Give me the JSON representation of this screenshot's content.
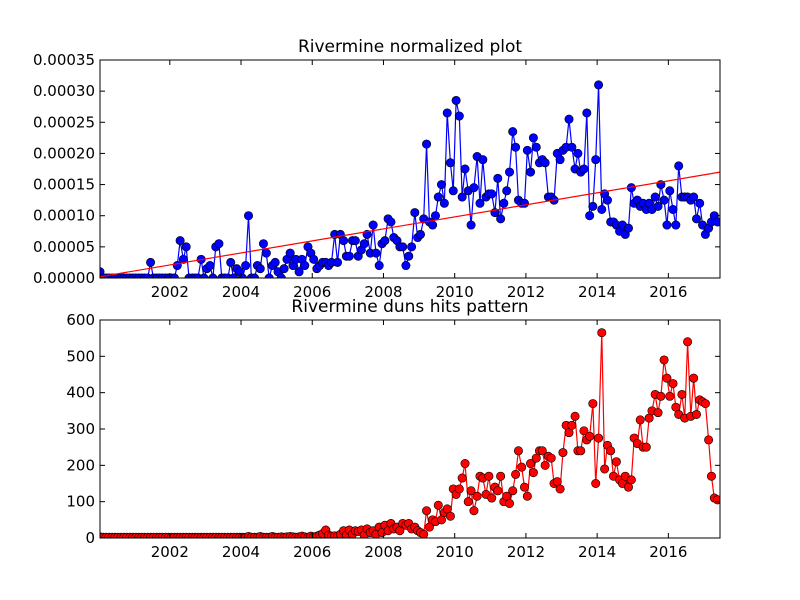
{
  "chart_data": [
    {
      "type": "line",
      "title": "Rivermine normalized plot",
      "xlim": [
        2000.04,
        2017.45
      ],
      "xticks": [
        2002,
        2004,
        2006,
        2008,
        2010,
        2012,
        2014,
        2016
      ],
      "ylim": [
        0,
        0.00035
      ],
      "yticks": [
        {
          "value": 0,
          "label": "0.00000"
        },
        {
          "value": 5e-05,
          "label": "0.00005"
        },
        {
          "value": 0.0001,
          "label": "0.00010"
        },
        {
          "value": 0.00015,
          "label": "0.00015"
        },
        {
          "value": 0.0002,
          "label": "0.00020"
        },
        {
          "value": 0.00025,
          "label": "0.00025"
        },
        {
          "value": 0.0003,
          "label": "0.00030"
        },
        {
          "value": 0.00035,
          "label": "0.00035"
        }
      ],
      "series": [
        {
          "color": "#0000ff",
          "marker": true,
          "x": [
            2000.04,
            2000.13,
            2000.21,
            2000.29,
            2000.38,
            2000.46,
            2000.54,
            2000.63,
            2000.71,
            2000.79,
            2000.88,
            2000.96,
            2001.04,
            2001.13,
            2001.21,
            2001.29,
            2001.38,
            2001.46,
            2001.54,
            2001.63,
            2001.71,
            2001.79,
            2001.88,
            2001.96,
            2002.04,
            2002.13,
            2002.21,
            2002.29,
            2002.38,
            2002.46,
            2002.54,
            2002.63,
            2002.71,
            2002.79,
            2002.88,
            2002.96,
            2003.04,
            2003.13,
            2003.21,
            2003.29,
            2003.38,
            2003.46,
            2003.54,
            2003.63,
            2003.71,
            2003.79,
            2003.88,
            2003.96,
            2004.04,
            2004.13,
            2004.21,
            2004.29,
            2004.38,
            2004.46,
            2004.54,
            2004.63,
            2004.71,
            2004.79,
            2004.88,
            2004.96,
            2005.04,
            2005.13,
            2005.21,
            2005.29,
            2005.38,
            2005.46,
            2005.54,
            2005.63,
            2005.71,
            2005.79,
            2005.88,
            2005.96,
            2006.04,
            2006.13,
            2006.21,
            2006.29,
            2006.38,
            2006.46,
            2006.54,
            2006.63,
            2006.71,
            2006.79,
            2006.88,
            2006.96,
            2007.04,
            2007.13,
            2007.21,
            2007.29,
            2007.38,
            2007.46,
            2007.54,
            2007.63,
            2007.71,
            2007.79,
            2007.88,
            2007.96,
            2008.04,
            2008.13,
            2008.21,
            2008.29,
            2008.38,
            2008.46,
            2008.54,
            2008.63,
            2008.71,
            2008.79,
            2008.88,
            2008.96,
            2009.04,
            2009.13,
            2009.21,
            2009.29,
            2009.38,
            2009.46,
            2009.54,
            2009.63,
            2009.71,
            2009.79,
            2009.88,
            2009.96,
            2010.04,
            2010.13,
            2010.21,
            2010.29,
            2010.38,
            2010.46,
            2010.54,
            2010.63,
            2010.71,
            2010.79,
            2010.88,
            2010.96,
            2011.04,
            2011.13,
            2011.21,
            2011.29,
            2011.38,
            2011.46,
            2011.54,
            2011.63,
            2011.71,
            2011.79,
            2011.88,
            2011.96,
            2012.04,
            2012.13,
            2012.21,
            2012.29,
            2012.38,
            2012.46,
            2012.54,
            2012.63,
            2012.71,
            2012.79,
            2012.88,
            2012.96,
            2013.04,
            2013.13,
            2013.21,
            2013.29,
            2013.38,
            2013.46,
            2013.54,
            2013.63,
            2013.71,
            2013.79,
            2013.88,
            2013.96,
            2014.04,
            2014.13,
            2014.21,
            2014.29,
            2014.38,
            2014.46,
            2014.54,
            2014.63,
            2014.71,
            2014.79,
            2014.88,
            2014.96,
            2015.04,
            2015.13,
            2015.21,
            2015.29,
            2015.38,
            2015.46,
            2015.54,
            2015.63,
            2015.71,
            2015.79,
            2015.88,
            2015.96,
            2016.04,
            2016.13,
            2016.21,
            2016.29,
            2016.38,
            2016.46,
            2016.54,
            2016.63,
            2016.71,
            2016.79,
            2016.88,
            2016.96,
            2017.04,
            2017.13,
            2017.21,
            2017.29,
            2017.38
          ],
          "values": [
            1e-05,
            0,
            0,
            0,
            0,
            0,
            0,
            0,
            0,
            0,
            0,
            0,
            0,
            0,
            0,
            0,
            0,
            2.5e-05,
            0,
            0,
            0,
            0,
            0,
            0,
            0,
            0,
            2e-05,
            6e-05,
            3e-05,
            5e-05,
            0,
            0,
            0,
            0,
            3e-05,
            0,
            1.5e-05,
            2e-05,
            0,
            5e-05,
            5.5e-05,
            0,
            0,
            0,
            2.5e-05,
            0,
            1.5e-05,
            1e-05,
            0,
            2e-05,
            0.0001,
            0,
            0,
            2e-05,
            1.5e-05,
            5.5e-05,
            4e-05,
            0,
            2e-05,
            2.5e-05,
            1e-05,
            0,
            1.5e-05,
            3e-05,
            4e-05,
            2e-05,
            3e-05,
            1e-05,
            3e-05,
            2e-05,
            5e-05,
            4e-05,
            3e-05,
            1.5e-05,
            2e-05,
            2.5e-05,
            2.5e-05,
            2e-05,
            2.5e-05,
            7e-05,
            2.5e-05,
            7e-05,
            6e-05,
            3.5e-05,
            3.5e-05,
            6e-05,
            6e-05,
            3.5e-05,
            4.5e-05,
            5.5e-05,
            7e-05,
            4e-05,
            8.5e-05,
            4e-05,
            2e-05,
            5.5e-05,
            6e-05,
            9.5e-05,
            9e-05,
            6.5e-05,
            6e-05,
            5e-05,
            5e-05,
            2e-05,
            3.5e-05,
            5e-05,
            0.000105,
            6.5e-05,
            7e-05,
            9.5e-05,
            0.000215,
            9e-05,
            8.5e-05,
            0.0001,
            0.00013,
            0.00015,
            0.00012,
            0.000265,
            0.000185,
            0.00014,
            0.000285,
            0.00026,
            0.00013,
            0.000175,
            0.00014,
            8.5e-05,
            0.000145,
            0.000195,
            0.00012,
            0.00019,
            0.00013,
            0.000135,
            0.000135,
            0.000105,
            0.00016,
            9.5e-05,
            0.00012,
            0.00014,
            0.00017,
            0.000235,
            0.00021,
            0.000125,
            0.00012,
            0.00012,
            0.000205,
            0.00017,
            0.000225,
            0.00021,
            0.000185,
            0.00019,
            0.000185,
            0.00013,
            0.00013,
            0.000125,
            0.0002,
            0.00019,
            0.000205,
            0.00021,
            0.000255,
            0.00021,
            0.000175,
            0.0002,
            0.00017,
            0.000175,
            0.000265,
            0.0001,
            0.000115,
            0.00019,
            0.00031,
            0.00011,
            0.000135,
            0.000125,
            9e-05,
            9e-05,
            8.5e-05,
            7.5e-05,
            8.5e-05,
            7e-05,
            8e-05,
            0.000145,
            0.00012,
            0.000125,
            0.000115,
            0.00012,
            0.00011,
            0.00012,
            0.00011,
            0.00013,
            0.000115,
            0.00015,
            0.000125,
            8.5e-05,
            0.00014,
            0.00011,
            8.5e-05,
            0.00018,
            0.00013,
            0.00013,
            0.00013,
            0.000125,
            0.00013,
            9.5e-05,
            0.00012,
            8.5e-05,
            7e-05,
            8e-05,
            9e-05,
            0.0001,
            9e-05
          ]
        },
        {
          "color": "#ff0000",
          "marker": false,
          "x": [
            2000.04,
            2017.45
          ],
          "values": [
            2e-06,
            0.00017
          ]
        }
      ]
    },
    {
      "type": "line",
      "title": "Rivermine duns hits pattern",
      "xlim": [
        2000.04,
        2017.45
      ],
      "xticks": [
        2002,
        2004,
        2006,
        2008,
        2010,
        2012,
        2014,
        2016
      ],
      "ylim": [
        0,
        600
      ],
      "yticks": [
        0,
        100,
        200,
        300,
        400,
        500,
        600
      ],
      "series": [
        {
          "color": "#ff0000",
          "marker": true,
          "x": [
            2000.04,
            2000.13,
            2000.21,
            2000.29,
            2000.38,
            2000.46,
            2000.54,
            2000.63,
            2000.71,
            2000.79,
            2000.88,
            2000.96,
            2001.04,
            2001.13,
            2001.21,
            2001.29,
            2001.38,
            2001.46,
            2001.54,
            2001.63,
            2001.71,
            2001.79,
            2001.88,
            2001.96,
            2002.04,
            2002.13,
            2002.21,
            2002.29,
            2002.38,
            2002.46,
            2002.54,
            2002.63,
            2002.71,
            2002.79,
            2002.88,
            2002.96,
            2003.04,
            2003.13,
            2003.21,
            2003.29,
            2003.38,
            2003.46,
            2003.54,
            2003.63,
            2003.71,
            2003.79,
            2003.88,
            2003.96,
            2004.04,
            2004.13,
            2004.21,
            2004.29,
            2004.38,
            2004.46,
            2004.54,
            2004.63,
            2004.71,
            2004.79,
            2004.88,
            2004.96,
            2005.04,
            2005.13,
            2005.21,
            2005.29,
            2005.38,
            2005.46,
            2005.54,
            2005.63,
            2005.71,
            2005.79,
            2005.88,
            2005.96,
            2006.04,
            2006.13,
            2006.21,
            2006.29,
            2006.38,
            2006.46,
            2006.54,
            2006.63,
            2006.71,
            2006.79,
            2006.88,
            2006.96,
            2007.04,
            2007.13,
            2007.21,
            2007.29,
            2007.38,
            2007.46,
            2007.54,
            2007.63,
            2007.71,
            2007.79,
            2007.88,
            2007.96,
            2008.04,
            2008.13,
            2008.21,
            2008.29,
            2008.38,
            2008.46,
            2008.54,
            2008.63,
            2008.71,
            2008.79,
            2008.88,
            2008.96,
            2009.04,
            2009.13,
            2009.21,
            2009.29,
            2009.38,
            2009.46,
            2009.54,
            2009.63,
            2009.71,
            2009.79,
            2009.88,
            2009.96,
            2010.04,
            2010.13,
            2010.21,
            2010.29,
            2010.38,
            2010.46,
            2010.54,
            2010.63,
            2010.71,
            2010.79,
            2010.88,
            2010.96,
            2011.04,
            2011.13,
            2011.21,
            2011.29,
            2011.38,
            2011.46,
            2011.54,
            2011.63,
            2011.71,
            2011.79,
            2011.88,
            2011.96,
            2012.04,
            2012.13,
            2012.21,
            2012.29,
            2012.38,
            2012.46,
            2012.54,
            2012.63,
            2012.71,
            2012.79,
            2012.88,
            2012.96,
            2013.04,
            2013.13,
            2013.21,
            2013.29,
            2013.38,
            2013.46,
            2013.54,
            2013.63,
            2013.71,
            2013.79,
            2013.88,
            2013.96,
            2014.04,
            2014.13,
            2014.21,
            2014.29,
            2014.38,
            2014.46,
            2014.54,
            2014.63,
            2014.71,
            2014.79,
            2014.88,
            2014.96,
            2015.04,
            2015.13,
            2015.21,
            2015.29,
            2015.38,
            2015.46,
            2015.54,
            2015.63,
            2015.71,
            2015.79,
            2015.88,
            2015.96,
            2016.04,
            2016.13,
            2016.21,
            2016.29,
            2016.38,
            2016.46,
            2016.54,
            2016.63,
            2016.71,
            2016.79,
            2016.88,
            2016.96,
            2017.04,
            2017.13,
            2017.21,
            2017.29,
            2017.38
          ],
          "values": [
            3,
            2,
            2,
            2,
            2,
            2,
            2,
            2,
            2,
            2,
            2,
            2,
            2,
            2,
            2,
            2,
            2,
            2,
            2,
            2,
            2,
            2,
            2,
            2,
            2,
            2,
            2,
            2,
            2,
            2,
            2,
            2,
            2,
            2,
            2,
            2,
            2,
            2,
            2,
            2,
            2,
            2,
            2,
            2,
            2,
            2,
            2,
            2,
            2,
            2,
            4,
            2,
            2,
            2,
            4,
            2,
            2,
            2,
            4,
            2,
            2,
            3,
            2,
            3,
            4,
            3,
            2,
            3,
            5,
            3,
            2,
            5,
            3,
            5,
            8,
            12,
            22,
            8,
            5,
            6,
            5,
            10,
            20,
            8,
            22,
            10,
            20,
            18,
            22,
            8,
            25,
            15,
            20,
            10,
            30,
            15,
            35,
            20,
            40,
            25,
            30,
            20,
            40,
            35,
            40,
            25,
            30,
            20,
            15,
            10,
            75,
            30,
            50,
            45,
            90,
            50,
            70,
            80,
            60,
            135,
            120,
            135,
            165,
            205,
            100,
            130,
            75,
            115,
            170,
            165,
            120,
            170,
            110,
            140,
            130,
            170,
            100,
            115,
            95,
            130,
            175,
            240,
            195,
            140,
            115,
            205,
            180,
            220,
            240,
            240,
            200,
            225,
            220,
            150,
            155,
            135,
            235,
            310,
            290,
            310,
            335,
            240,
            240,
            295,
            270,
            280,
            370,
            150,
            275,
            565,
            190,
            255,
            240,
            170,
            210,
            160,
            150,
            170,
            140,
            160,
            275,
            260,
            325,
            250,
            250,
            330,
            350,
            395,
            345,
            390,
            490,
            440,
            390,
            425,
            360,
            340,
            395,
            330,
            540,
            335,
            440,
            340,
            380,
            375,
            370,
            270,
            170,
            110,
            105
          ]
        }
      ]
    }
  ]
}
